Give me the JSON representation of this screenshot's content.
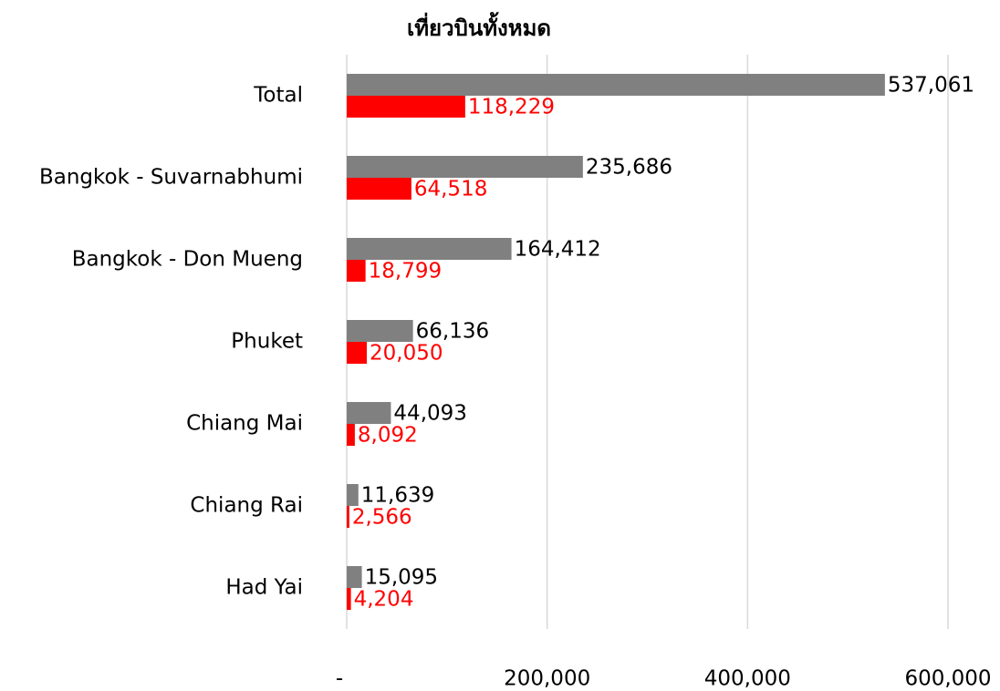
{
  "chart_data": {
    "type": "bar",
    "orientation": "horizontal",
    "title": "เที่ยวบินทั้งหมด",
    "categories": [
      "Total",
      "Bangkok - Suvarnabhumi",
      "Bangkok - Don Mueng",
      "Phuket",
      "Chiang Mai",
      "Chiang Rai",
      "Had Yai"
    ],
    "series": [
      {
        "color": "#808080",
        "values": [
          537061,
          235686,
          164412,
          66136,
          44093,
          11639,
          15095
        ],
        "value_labels": [
          "537,061",
          "235,686",
          "164,412",
          "66,136",
          "44,093",
          "11,639",
          "15,095"
        ]
      },
      {
        "color": "#ff0000",
        "values": [
          118229,
          64518,
          18799,
          20050,
          8092,
          2566,
          4204
        ],
        "value_labels": [
          "118,229",
          "64,518",
          "18,799",
          "20,050",
          "8,092",
          "2,566",
          "4,204"
        ]
      }
    ],
    "xlim": [
      0,
      600000
    ],
    "xticks": [
      {
        "value": 0,
        "label": "-"
      },
      {
        "value": 200000,
        "label": "200,000"
      },
      {
        "value": 400000,
        "label": "400,000"
      },
      {
        "value": 600000,
        "label": "600,000"
      }
    ],
    "grid": true
  }
}
